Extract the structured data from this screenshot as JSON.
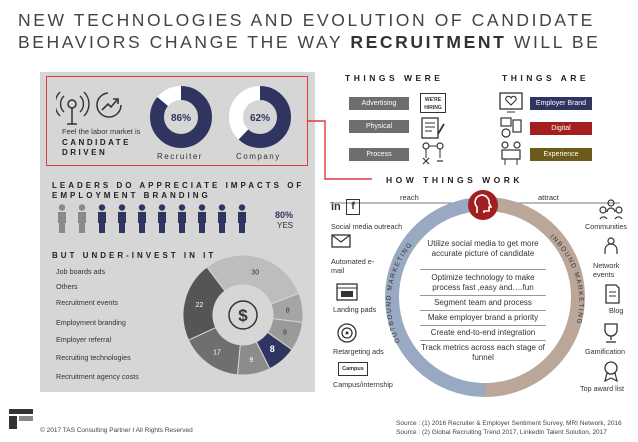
{
  "title": {
    "line1": "NEW TECHNOLOGIES AND EVOLUTION OF CANDIDATE",
    "line2_prefix": "BEHAVIORS CHANGE THE WAY ",
    "line2_bold": "RECRUITMENT",
    "line2_suffix": " WILL BE"
  },
  "candidate_driven": {
    "feel_label": "Feel the labor market is",
    "heading_line1": "CANDIDATE",
    "heading_line2": "DRIVEN",
    "recruiter_pct": "86%",
    "recruiter_value": 86,
    "recruiter_label": "Recruiter",
    "company_pct": "62%",
    "company_value": 62,
    "company_label": "Company"
  },
  "branding": {
    "heading_line1": "LEADERS DO APPRECIATE IMPACTS OF",
    "heading_line2": "EMPLOYMENT BRANDING",
    "pct": "80%",
    "yes": "YES",
    "people_total": 10,
    "people_dark": 8
  },
  "underinvest": {
    "heading": "BUT UNDER-INVEST IN IT",
    "items": [
      "Job boards ads",
      "Others",
      "Recruitment events",
      "Employment branding",
      "Employer referral",
      "Recruiting technologies",
      "Recruitment agency costs"
    ]
  },
  "chart_data": {
    "type": "pie",
    "categories": [
      "Job boards ads",
      "Others",
      "Recruitment events",
      "Employment branding",
      "Employer referral",
      "Recruiting technologies",
      "Recruitment agency costs"
    ],
    "values": [
      30,
      8,
      8,
      8,
      9,
      17,
      22
    ],
    "value_labels": [
      "30",
      "8",
      "8",
      "8",
      "9",
      "17",
      "22"
    ]
  },
  "things_were": {
    "heading": "THINGS WERE",
    "tags": [
      "Advertising",
      "Physical",
      "Process"
    ],
    "sign_line1": "WE'RE",
    "sign_line2": "HIRING"
  },
  "things_are": {
    "heading": "THINGS ARE",
    "tags": [
      "Employer Brand",
      "Digital",
      "Experience"
    ]
  },
  "how_things_work": {
    "heading": "HOW THINGS WORK",
    "reach": "reach",
    "attract": "attract",
    "outbound": "OUTBOUND MARKETING",
    "inbound": "INBOUND MARKETING",
    "intro": "Utilize social media to get more accurate picture of candidate",
    "steps": [
      "Optimize technology to make process fast ,easy and….fun",
      "Segment team and process",
      "Make employer brand a priority",
      "Create end-to-end integration",
      "Track metrics across each stage of funnel"
    ],
    "left_channels": [
      "Social media outreach",
      "Automated e-mail",
      "Landing pads",
      "Retargeting ads",
      "Campus/internship"
    ],
    "right_channels": [
      "Communities",
      "Network events",
      "Blog",
      "Gamification",
      "Top award list"
    ],
    "linkedin_glyph": "in",
    "facebook_glyph": "f",
    "campus_glyph": "Campus"
  },
  "footer": {
    "copyright": "© 2017 TAS Consulting Partner I All Rights Reserved",
    "source1": "Source : (1) 2016 Recruiter & Employer Sentiment Survey, MRI Network, 2016",
    "source2": "Source : (2) Global Recruiting Trend 2017, LinkedIn Talent Solution, 2017"
  },
  "colors": {
    "navy": "#2f3560",
    "red": "#a31f1f",
    "olive": "#6b5a18",
    "gray": "#6e6e6e",
    "highlight_red": "#e03a3a",
    "ring_blue": "#9aa9c2",
    "ring_tan": "#bba79a"
  }
}
